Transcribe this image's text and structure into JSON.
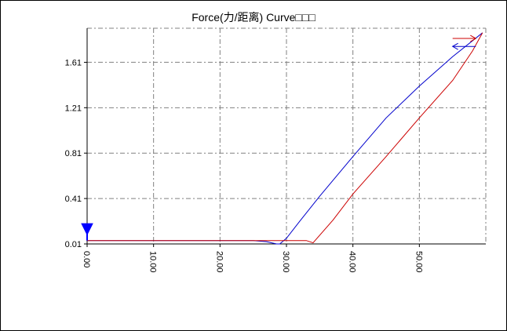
{
  "window": {
    "title": "Force(力/距离) Curve□□□"
  },
  "chart_data": {
    "type": "line",
    "title": "Force(力/距离) Curve□□□",
    "xlabel": "",
    "ylabel": "",
    "xlim": [
      0,
      60
    ],
    "ylim": [
      0.01,
      1.91
    ],
    "grid": true,
    "x_ticks": [
      "0.00",
      "10.00",
      "20.00",
      "30.00",
      "40.00",
      "50.00"
    ],
    "y_ticks": [
      "0.01",
      "0.41",
      "0.81",
      "1.21",
      "1.61"
    ],
    "x_tick_values": [
      0,
      10,
      20,
      30,
      40,
      50
    ],
    "y_tick_values": [
      0.01,
      0.41,
      0.81,
      1.21,
      1.61
    ],
    "series": [
      {
        "color": "#0000cc",
        "x": [
          0,
          25,
          27,
          28.5,
          29,
          30,
          32,
          35,
          40,
          45,
          50,
          55,
          59.5
        ],
        "y": [
          0.04,
          0.04,
          0.03,
          0.01,
          0.01,
          0.06,
          0.21,
          0.43,
          0.78,
          1.12,
          1.4,
          1.66,
          1.87
        ]
      },
      {
        "color": "#cc0000",
        "x": [
          0,
          20,
          30,
          33,
          34,
          37,
          40,
          45,
          50,
          55,
          58,
          59.5
        ],
        "y": [
          0.04,
          0.04,
          0.04,
          0.04,
          0.02,
          0.22,
          0.45,
          0.78,
          1.12,
          1.45,
          1.71,
          1.87
        ]
      },
      {
        "color": "#0000cc",
        "x": [
          55.0,
          58.5
        ],
        "y": [
          1.75,
          1.75
        ]
      },
      {
        "color": "#cc0000",
        "x": [
          55.0,
          58.5
        ],
        "y": [
          1.82,
          1.82
        ]
      }
    ],
    "marker": {
      "type": "down-triangle",
      "x": 0,
      "y": 0.12,
      "color": "#0000ff"
    }
  }
}
